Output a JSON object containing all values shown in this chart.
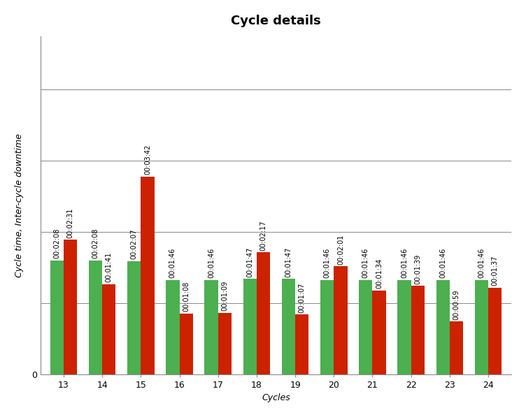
{
  "title": "Cycle details",
  "xlabel": "Cycles",
  "ylabel": "Cycle time, Inter-cycle downtime",
  "cycles": [
    13,
    14,
    15,
    16,
    17,
    18,
    19,
    20,
    21,
    22,
    23,
    24
  ],
  "green_values": [
    128,
    128,
    127,
    106,
    106,
    107,
    107,
    106,
    106,
    106,
    106,
    106
  ],
  "red_values": [
    151,
    101,
    222,
    68,
    69,
    137,
    67,
    121,
    94,
    99,
    59,
    97
  ],
  "green_labels": [
    "00:02:08",
    "00:02:08",
    "00:02:07",
    "00:01:46",
    "00:01:46",
    "00:01:47",
    "00:01:47",
    "00:01:46",
    "00:01:46",
    "00:01:46",
    "00:01:46",
    "00:01:46"
  ],
  "red_labels": [
    "00:02:31",
    "00:01:41",
    "00:03:42",
    "00:01:08",
    "00:01:09",
    "00:02:17",
    "00:01:07",
    "00:02:01",
    "00:01:34",
    "00:01:39",
    "00:00:59",
    "00:01:37"
  ],
  "green_color": "#4CAF50",
  "red_color": "#CC2200",
  "background_color": "#ffffff",
  "ylim_max": 380,
  "ytick_interval": 80,
  "bar_width": 0.35,
  "title_fontsize": 13,
  "label_fontsize": 9,
  "tick_label_fontsize": 9,
  "annotation_fontsize": 7
}
